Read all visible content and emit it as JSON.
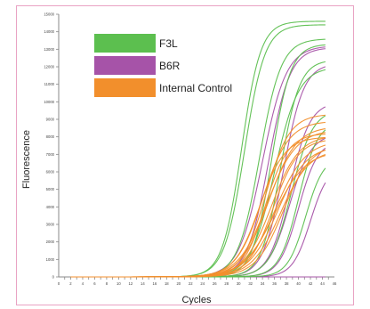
{
  "chart_data": {
    "type": "line",
    "xlabel": "Cycles",
    "ylabel": "Fluorescence",
    "xlim": [
      0,
      46
    ],
    "ylim": [
      0,
      15000
    ],
    "x_ticks": [
      1,
      2,
      3,
      4,
      5,
      6,
      7,
      8,
      9,
      10,
      11,
      12,
      13,
      14,
      15,
      16,
      17,
      18,
      19,
      20,
      21,
      22,
      23,
      24,
      25,
      26,
      27,
      28,
      29,
      30,
      31,
      32,
      33,
      34,
      35,
      36,
      37,
      38,
      39,
      40,
      41,
      42,
      43,
      44,
      45
    ],
    "x_tick_labels": [
      "0",
      "2",
      "4",
      "6",
      "8",
      "10",
      "12",
      "14",
      "16",
      "18",
      "20",
      "22",
      "24",
      "26",
      "28",
      "30",
      "32",
      "34",
      "36",
      "38",
      "40",
      "42",
      "44",
      "46"
    ],
    "y_tick_labels": [
      "0",
      "1000",
      "2000",
      "3000",
      "4000",
      "5000",
      "6000",
      "7000",
      "8000",
      "9000",
      "10000",
      "11000",
      "12000",
      "13000",
      "14000",
      "15000"
    ],
    "legend": [
      "F3L",
      "B6R",
      "Internal Control"
    ],
    "legend_position": "top-left",
    "grid": false,
    "colors": {
      "F3L": "#5cbf4f",
      "B6R": "#a653a8",
      "Internal Control": "#f28f2c"
    },
    "series": [
      {
        "name": "F3L",
        "color": "#5cbf4f",
        "curves": [
          [
            14600,
            30.5,
            1.6
          ],
          [
            14400,
            31,
            1.7
          ],
          [
            13600,
            33.5,
            1.8
          ],
          [
            13300,
            35.5,
            1.6
          ],
          [
            12400,
            37,
            1.6
          ],
          [
            12000,
            36,
            2.0
          ],
          [
            9600,
            38.8,
            1.8
          ],
          [
            8900,
            40,
            1.6
          ],
          [
            6900,
            41.2,
            1.5
          ]
        ]
      },
      {
        "name": "B6R",
        "color": "#a653a8",
        "curves": [
          [
            13200,
            34,
            2.0
          ],
          [
            13100,
            35,
            1.8
          ],
          [
            12200,
            37.5,
            1.7
          ],
          [
            10000,
            38.5,
            1.7
          ],
          [
            8200,
            38.5,
            1.8
          ],
          [
            7800,
            40,
            1.6
          ],
          [
            6400,
            42,
            1.5
          ],
          [
            0,
            30,
            1.0
          ]
        ]
      },
      {
        "name": "Internal Control",
        "color": "#f28f2c",
        "curves": [
          [
            9300,
            34.5,
            2.0
          ],
          [
            8900,
            34,
            2.2
          ],
          [
            8600,
            35,
            2.3
          ],
          [
            8400,
            34.8,
            2.4
          ],
          [
            8100,
            35.5,
            2.3
          ],
          [
            7900,
            35.8,
            2.1
          ],
          [
            7800,
            36.2,
            2.5
          ],
          [
            7500,
            36.5,
            2.4
          ],
          [
            7300,
            37,
            2.4
          ],
          [
            8200,
            34.5,
            1.9
          ],
          [
            7600,
            37.5,
            2.3
          ],
          [
            8000,
            33.5,
            2.1
          ],
          [
            7200,
            36,
            2.6
          ]
        ]
      }
    ]
  }
}
